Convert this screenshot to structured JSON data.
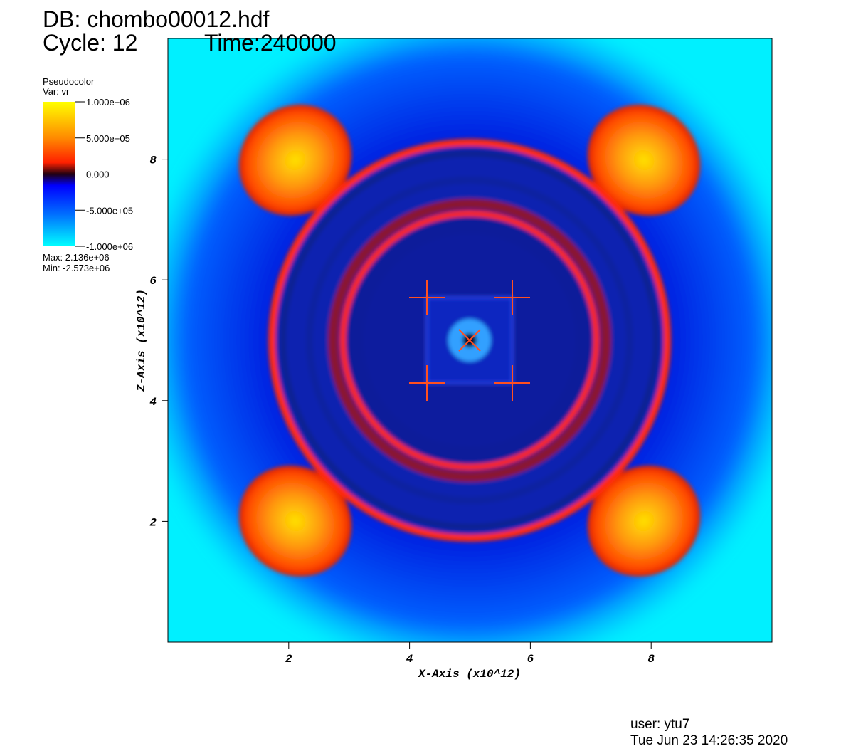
{
  "chart_data": {
    "type": "pseudocolor",
    "title": "DB: chombo00012.hdf",
    "cycle": "Cycle: 12",
    "time": "Time:240000",
    "legend": {
      "title": "Pseudocolor",
      "variable": "Var: vr",
      "range": [
        -1000000,
        1000000
      ],
      "ticks": [
        {
          "value": 1000000,
          "label": "1.000e+06"
        },
        {
          "value": 500000,
          "label": "5.000e+05"
        },
        {
          "value": 0,
          "label": "0.000"
        },
        {
          "value": -500000,
          "label": "-5.000e+05"
        },
        {
          "value": -1000000,
          "label": "-1.000e+06"
        }
      ],
      "max": "Max: 2.136e+06",
      "min": "Min: -2.573e+06"
    },
    "xlabel": "X-Axis (x10^12)",
    "ylabel": "Z-Axis (x10^12)",
    "xlim": [
      0,
      10
    ],
    "ylim": [
      0,
      10
    ],
    "xticks": [
      2,
      4,
      6,
      8
    ],
    "yticks": [
      2,
      4,
      6,
      8
    ],
    "user": "user: ytu7",
    "date": "Tue Jun 23 14:26:35 2020"
  }
}
